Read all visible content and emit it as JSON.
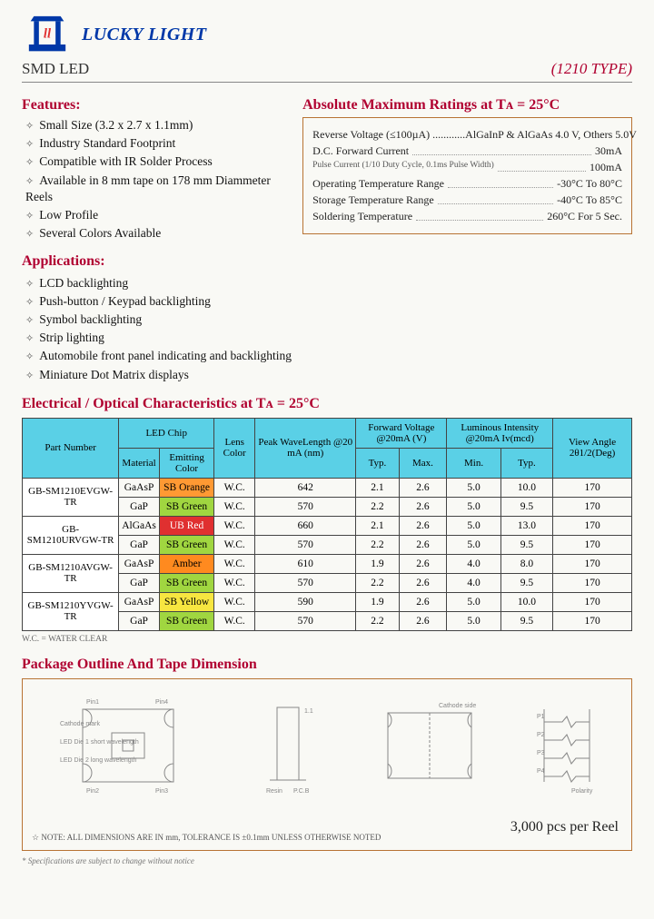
{
  "brand": "LUCKY LIGHT",
  "title_left": "SMD LED",
  "title_right": "(1210 TYPE)",
  "features_h": "Features:",
  "features": [
    "Small Size (3.2 x 2.7 x 1.1mm)",
    "Industry Standard Footprint",
    "Compatible with IR Solder Process",
    "Available in 8 mm tape on 178 mm Diammeter Reels",
    "Low Profile",
    "Several Colors Available"
  ],
  "apps_h": "Applications:",
  "apps": [
    "LCD backlighting",
    "Push-button / Keypad backlighting",
    "Symbol backlighting",
    "Strip lighting",
    "Automobile front panel indicating and backlighting",
    "Miniature Dot Matrix displays"
  ],
  "ratings_h": "Absolute Maximum Ratings at Tᴀ = 25°C",
  "ratings": [
    {
      "l": "Reverse Voltage (≤100µA) ............",
      "r": "AlGaInP & AlGaAs 4.0 V, Others 5.0V"
    },
    {
      "l": "D.C. Forward Current",
      "r": "30mA"
    },
    {
      "l": "Pulse Current (1/10 Duty Cycle, 0.1ms Pulse Width)",
      "r": "100mA"
    },
    {
      "l": "Operating Temperature Range",
      "r": "-30°C To  80°C"
    },
    {
      "l": "Storage Temperature Range",
      "r": "-40°C To  85°C"
    },
    {
      "l": "Soldering Temperature",
      "r": "260°C For 5 Sec."
    }
  ],
  "elec_h": "Electrical / Optical Characteristics at Tᴀ = 25°C",
  "th": {
    "pn": "Part Number",
    "chip": "LED Chip",
    "mat": "Material",
    "color": "Emitting Color",
    "lens": "Lens Color",
    "peak": "Peak WaveLength @20 mA (nm)",
    "vf": "Forward Voltage @20mA (V)",
    "typ": "Typ.",
    "max": "Max.",
    "lum": "Luminous Intensity @20mA Iv(mcd)",
    "min": "Min.",
    "typ2": "Typ.",
    "view": "View Angle 2θ1/2(Deg)"
  },
  "rows": [
    {
      "pn": "GB-SM1210EVGW-TR",
      "mat": "GaAsP",
      "col": "SB Orange",
      "cls": "chip-orange",
      "lens": "W.C.",
      "peak": "642",
      "vft": "2.1",
      "vfm": "2.6",
      "lm": "5.0",
      "lt": "10.0",
      "va": "170"
    },
    {
      "pn": "",
      "mat": "GaP",
      "col": "SB Green",
      "cls": "chip-green",
      "lens": "W.C.",
      "peak": "570",
      "vft": "2.2",
      "vfm": "2.6",
      "lm": "5.0",
      "lt": "9.5",
      "va": "170"
    },
    {
      "pn": "GB-SM1210URVGW-TR",
      "mat": "AlGaAs",
      "col": "UB Red",
      "cls": "chip-red",
      "lens": "W.C.",
      "peak": "660",
      "vft": "2.1",
      "vfm": "2.6",
      "lm": "5.0",
      "lt": "13.0",
      "va": "170"
    },
    {
      "pn": "",
      "mat": "GaP",
      "col": "SB Green",
      "cls": "chip-green",
      "lens": "W.C.",
      "peak": "570",
      "vft": "2.2",
      "vfm": "2.6",
      "lm": "5.0",
      "lt": "9.5",
      "va": "170"
    },
    {
      "pn": "GB-SM1210AVGW-TR",
      "mat": "GaAsP",
      "col": "Amber",
      "cls": "chip-amber",
      "lens": "W.C.",
      "peak": "610",
      "vft": "1.9",
      "vfm": "2.6",
      "lm": "4.0",
      "lt": "8.0",
      "va": "170"
    },
    {
      "pn": "",
      "mat": "GaP",
      "col": "SB Green",
      "cls": "chip-green",
      "lens": "W.C.",
      "peak": "570",
      "vft": "2.2",
      "vfm": "2.6",
      "lm": "4.0",
      "lt": "9.5",
      "va": "170"
    },
    {
      "pn": "GB-SM1210YVGW-TR",
      "mat": "GaAsP",
      "col": "SB Yellow",
      "cls": "chip-yellow",
      "lens": "W.C.",
      "peak": "590",
      "vft": "1.9",
      "vfm": "2.6",
      "lm": "5.0",
      "lt": "10.0",
      "va": "170"
    },
    {
      "pn": "",
      "mat": "GaP",
      "col": "SB Green",
      "cls": "chip-green",
      "lens": "W.C.",
      "peak": "570",
      "vft": "2.2",
      "vfm": "2.6",
      "lm": "5.0",
      "lt": "9.5",
      "va": "170"
    }
  ],
  "wc_note": "W.C. = WATER CLEAR",
  "pkg_h": "Package Outline And Tape Dimension",
  "pkg_note": "☆ NOTE: ALL DIMENSIONS ARE IN mm, TOLERANCE IS ±0.1mm UNLESS OTHERWISE NOTED",
  "pkg_qty": "3,000 pcs per Reel",
  "endnote": "* Specifications are subject to change without notice"
}
